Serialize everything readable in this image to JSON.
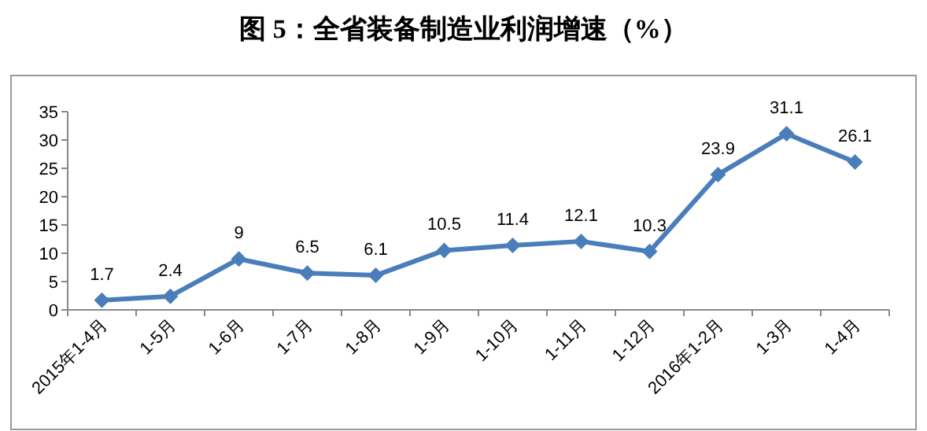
{
  "chart_data": {
    "type": "line",
    "title": "图 5：全省装备制造业利润增速（%）",
    "categories": [
      "2015年1-4月",
      "1-5月",
      "1-6月",
      "1-7月",
      "1-8月",
      "1-9月",
      "1-10月",
      "1-11月",
      "1-12月",
      "2016年1-2月",
      "1-3月",
      "1-4月"
    ],
    "series": [
      {
        "color": "#4a7ebb",
        "values": [
          1.7,
          2.4,
          9,
          6.5,
          6.1,
          10.5,
          11.4,
          12.1,
          10.3,
          23.9,
          31.1,
          26.1
        ]
      }
    ],
    "ylim": [
      0,
      35
    ],
    "yticks": [
      0,
      5,
      10,
      15,
      20,
      25,
      30,
      35
    ],
    "data_labels": true,
    "marker": "diamond",
    "line_style": "solid",
    "grid": false
  }
}
